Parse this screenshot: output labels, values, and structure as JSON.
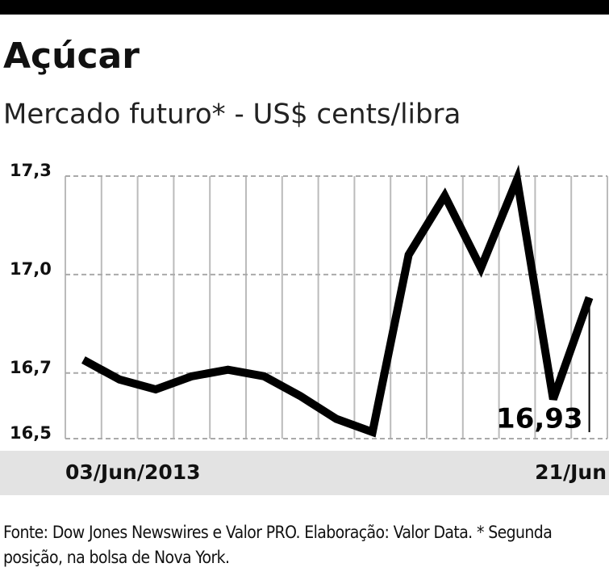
{
  "chart_data": {
    "type": "line",
    "title": "Açúcar",
    "subtitle": "Mercado futuro* - US$ cents/libra",
    "categories": [
      "03/Jun/2013",
      null,
      null,
      null,
      null,
      null,
      null,
      null,
      null,
      null,
      null,
      null,
      null,
      null,
      "21/Jun"
    ],
    "series": [
      {
        "color": "#000000",
        "values": [
          16.74,
          16.68,
          16.65,
          16.69,
          16.71,
          16.69,
          16.63,
          16.56,
          16.52,
          17.06,
          17.24,
          17.02,
          17.29,
          16.62,
          16.93
        ],
        "value_labels": [
          null,
          null,
          null,
          null,
          null,
          null,
          null,
          null,
          null,
          null,
          null,
          null,
          null,
          null,
          "16,93"
        ]
      }
    ],
    "ylim": [
      16.5,
      17.3
    ],
    "yticks": [
      {
        "value": 16.5,
        "label": "16,5"
      },
      {
        "value": 16.7,
        "label": "16,7"
      },
      {
        "value": 17.0,
        "label": "17,0"
      },
      {
        "value": 17.3,
        "label": "17,3"
      }
    ],
    "grid": true,
    "source": "Fonte: Dow Jones Newswires e Valor PRO. Elaboração: Valor Data. * Segunda posição, na bolsa de Nova York."
  }
}
